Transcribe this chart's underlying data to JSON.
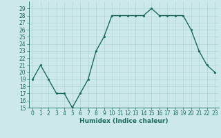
{
  "x": [
    0,
    1,
    2,
    3,
    4,
    5,
    6,
    7,
    8,
    9,
    10,
    11,
    12,
    13,
    14,
    15,
    16,
    17,
    18,
    19,
    20,
    21,
    22,
    23
  ],
  "y": [
    19,
    21,
    19,
    17,
    17,
    15,
    17,
    19,
    23,
    25,
    28,
    28,
    28,
    28,
    28,
    29,
    28,
    28,
    28,
    28,
    26,
    23,
    21,
    20
  ],
  "line_color": "#1a6b5a",
  "marker_color": "#1a6b5a",
  "bg_color": "#cce8e8",
  "grid_color": "#aed4d4",
  "xlabel": "Humidex (Indice chaleur)",
  "ylim": [
    15,
    30
  ],
  "xlim": [
    -0.5,
    23.5
  ],
  "yticks": [
    15,
    16,
    17,
    18,
    19,
    20,
    21,
    22,
    23,
    24,
    25,
    26,
    27,
    28,
    29
  ],
  "xticks": [
    0,
    1,
    2,
    3,
    4,
    5,
    6,
    7,
    8,
    9,
    10,
    11,
    12,
    13,
    14,
    15,
    16,
    17,
    18,
    19,
    20,
    21,
    22,
    23
  ],
  "tick_fontsize": 5.5,
  "xlabel_fontsize": 6.5,
  "line_width": 1.0,
  "marker_size": 2.5
}
